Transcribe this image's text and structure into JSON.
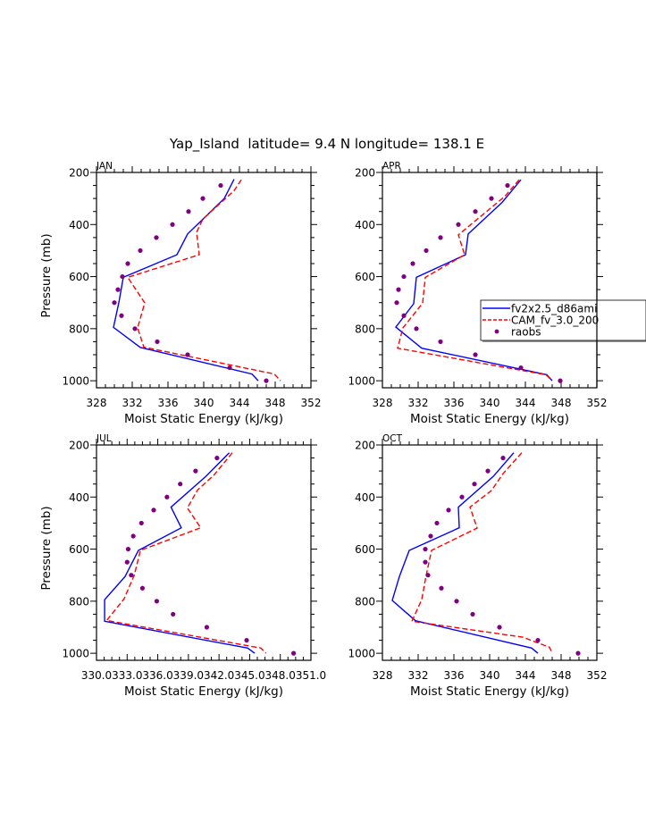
{
  "chart_data": {
    "type": "line",
    "title": "Yap_Island  latitude= 9.4 N longitude= 138.1 E",
    "legend": {
      "placement": "right-middle (inside APR panel, clipped)",
      "entries": [
        {
          "name": "fv2x2.5_d86ami",
          "style": "solid",
          "color": "#0000ff"
        },
        {
          "name": "CAM_fv_3.0_200",
          "style": "dashed",
          "color": "#ff0000"
        },
        {
          "name": "raobs",
          "style": "marker",
          "color": "#800080"
        }
      ]
    },
    "panels": [
      {
        "label": "JAN",
        "xlabel": "Moist Static Energy (kJ/kg)",
        "ylabel": "Pressure (mb)",
        "xlim": [
          328,
          352
        ],
        "ylim": [
          200,
          1027
        ],
        "y_inverted": true,
        "xticks": [
          "328",
          "332",
          "336",
          "340",
          "344",
          "348",
          "352"
        ],
        "xtick_values": [
          328,
          332,
          336,
          340,
          344,
          348,
          352
        ],
        "yticks": [
          200,
          400,
          600,
          800,
          1000
        ],
        "series": [
          {
            "name": "fv2x2.5_d86ami",
            "points": [
              [
                226,
                343.4
              ],
              [
                300,
                342.3
              ],
              [
                370,
                340.2
              ],
              [
                436,
                338.2
              ],
              [
                516,
                337.0
              ],
              [
                603,
                331.0
              ],
              [
                700,
                330.5
              ],
              [
                795,
                329.9
              ],
              [
                872,
                332.9
              ],
              [
                974,
                345.4
              ],
              [
                1000,
                346.1
              ]
            ]
          },
          {
            "name": "CAM_fv_3.0_200",
            "points": [
              [
                228,
                344.2
              ],
              [
                270,
                343.4
              ],
              [
                379,
                339.9
              ],
              [
                430,
                339.2
              ],
              [
                516,
                339.5
              ],
              [
                603,
                331.5
              ],
              [
                701,
                333.4
              ],
              [
                797,
                332.6
              ],
              [
                871,
                333.3
              ],
              [
                974,
                347.9
              ],
              [
                1000,
                348.6
              ]
            ]
          },
          {
            "name": "raobs",
            "points": [
              [
                250,
                341.9
              ],
              [
                300,
                339.9
              ],
              [
                350,
                338.3
              ],
              [
                400,
                336.5
              ],
              [
                450,
                334.7
              ],
              [
                500,
                332.9
              ],
              [
                550,
                331.5
              ],
              [
                600,
                330.9
              ],
              [
                650,
                330.4
              ],
              [
                700,
                330.0
              ],
              [
                750,
                330.8
              ],
              [
                800,
                332.3
              ],
              [
                850,
                334.8
              ],
              [
                900,
                338.2
              ],
              [
                950,
                342.9
              ],
              [
                1000,
                347.0
              ]
            ]
          }
        ],
        "show_legend": false
      },
      {
        "label": "APR",
        "xlabel": "Moist Static Energy (kJ/kg)",
        "ylabel": "",
        "xlim": [
          328,
          352
        ],
        "ylim": [
          200,
          1027
        ],
        "y_inverted": true,
        "xticks": [
          "328",
          "332",
          "336",
          "340",
          "344",
          "348",
          "352"
        ],
        "xtick_values": [
          328,
          332,
          336,
          340,
          344,
          348,
          352
        ],
        "yticks": [
          200,
          400,
          600,
          800,
          1000
        ],
        "series": [
          {
            "name": "fv2x2.5_d86ami",
            "points": [
              [
                228,
                343.5
              ],
              [
                315,
                341.4
              ],
              [
                436,
                337.6
              ],
              [
                516,
                337.3
              ],
              [
                603,
                331.8
              ],
              [
                704,
                331.5
              ],
              [
                794,
                329.5
              ],
              [
                875,
                332.4
              ],
              [
                977,
                346.4
              ],
              [
                1000,
                347.0
              ]
            ]
          },
          {
            "name": "CAM_fv_3.0_200",
            "points": [
              [
                228,
                343.3
              ],
              [
                292,
                341.7
              ],
              [
                440,
                336.5
              ],
              [
                516,
                337.2
              ],
              [
                603,
                332.8
              ],
              [
                702,
                332.5
              ],
              [
                797,
                330.3
              ],
              [
                875,
                329.7
              ],
              [
                977,
                346.3
              ],
              [
                1000,
                347.0
              ]
            ]
          },
          {
            "name": "raobs",
            "points": [
              [
                250,
                342.0
              ],
              [
                300,
                340.2
              ],
              [
                350,
                338.4
              ],
              [
                400,
                336.5
              ],
              [
                450,
                334.5
              ],
              [
                500,
                332.9
              ],
              [
                550,
                331.4
              ],
              [
                600,
                330.4
              ],
              [
                650,
                329.8
              ],
              [
                700,
                329.6
              ],
              [
                750,
                330.4
              ],
              [
                800,
                331.8
              ],
              [
                850,
                334.5
              ],
              [
                900,
                338.4
              ],
              [
                950,
                343.5
              ],
              [
                1000,
                347.9
              ]
            ]
          }
        ],
        "show_legend": true
      },
      {
        "label": "JUL",
        "xlabel": "Moist Static Energy (kJ/kg)",
        "ylabel": "Pressure (mb)",
        "xlim": [
          330,
          351
        ],
        "ylim": [
          200,
          1027
        ],
        "y_inverted": true,
        "xticks": [
          "330.0",
          "333.0",
          "336.0",
          "339.0",
          "342.0",
          "345.0",
          "348.0",
          "351.0"
        ],
        "xtick_values": [
          330,
          333,
          336,
          339,
          342,
          345,
          348,
          351
        ],
        "yticks": [
          200,
          400,
          600,
          800,
          1000
        ],
        "series": [
          {
            "name": "fv2x2.5_d86ami",
            "points": [
              [
                230,
                343.0
              ],
              [
                321,
                340.7
              ],
              [
                439,
                337.3
              ],
              [
                518,
                338.3
              ],
              [
                605,
                334.1
              ],
              [
                705,
                332.8
              ],
              [
                794,
                330.8
              ],
              [
                877,
                330.8
              ],
              [
                980,
                344.8
              ],
              [
                1000,
                345.5
              ]
            ]
          },
          {
            "name": "CAM_fv_3.0_200",
            "points": [
              [
                230,
                343.3
              ],
              [
                316,
                341.5
              ],
              [
                373,
                339.9
              ],
              [
                442,
                338.9
              ],
              [
                518,
                340.2
              ],
              [
                605,
                334.3
              ],
              [
                700,
                333.7
              ],
              [
                791,
                332.7
              ],
              [
                874,
                331.0
              ],
              [
                980,
                346.1
              ],
              [
                1000,
                346.6
              ]
            ]
          },
          {
            "name": "raobs",
            "points": [
              [
                250,
                341.8
              ],
              [
                300,
                339.7
              ],
              [
                350,
                338.2
              ],
              [
                400,
                336.9
              ],
              [
                450,
                335.6
              ],
              [
                500,
                334.4
              ],
              [
                550,
                333.6
              ],
              [
                600,
                333.1
              ],
              [
                650,
                333.0
              ],
              [
                700,
                333.4
              ],
              [
                750,
                334.5
              ],
              [
                800,
                335.9
              ],
              [
                850,
                337.5
              ],
              [
                900,
                340.8
              ],
              [
                950,
                344.7
              ],
              [
                1000,
                349.3
              ]
            ]
          }
        ],
        "show_legend": false
      },
      {
        "label": "OCT",
        "xlabel": "Moist Static Energy (kJ/kg)",
        "ylabel": "",
        "xlim": [
          328,
          352
        ],
        "ylim": [
          200,
          1027
        ],
        "y_inverted": true,
        "xticks": [
          "328",
          "332",
          "336",
          "340",
          "344",
          "348",
          "352"
        ],
        "xtick_values": [
          328,
          332,
          336,
          340,
          344,
          348,
          352
        ],
        "yticks": [
          200,
          400,
          600,
          800,
          1000
        ],
        "series": [
          {
            "name": "fv2x2.5_d86ami",
            "points": [
              [
                230,
                342.7
              ],
              [
                321,
                340.4
              ],
              [
                439,
                336.5
              ],
              [
                518,
                336.6
              ],
              [
                605,
                331.0
              ],
              [
                705,
                329.9
              ],
              [
                797,
                329.1
              ],
              [
                875,
                331.7
              ],
              [
                980,
                344.7
              ],
              [
                1000,
                345.4
              ]
            ]
          },
          {
            "name": "CAM_fv_3.0_200",
            "points": [
              [
                230,
                343.6
              ],
              [
                310,
                341.5
              ],
              [
                375,
                340.2
              ],
              [
                439,
                337.8
              ],
              [
                519,
                338.6
              ],
              [
                605,
                333.5
              ],
              [
                700,
                332.9
              ],
              [
                794,
                332.4
              ],
              [
                877,
                331.3
              ],
              [
                938,
                343.7
              ],
              [
                977,
                346.7
              ],
              [
                1000,
                347.0
              ]
            ]
          },
          {
            "name": "raobs",
            "points": [
              [
                250,
                341.5
              ],
              [
                300,
                339.8
              ],
              [
                350,
                338.3
              ],
              [
                400,
                336.9
              ],
              [
                450,
                335.4
              ],
              [
                500,
                334.1
              ],
              [
                550,
                333.4
              ],
              [
                600,
                332.8
              ],
              [
                650,
                332.8
              ],
              [
                700,
                333.1
              ],
              [
                750,
                334.6
              ],
              [
                800,
                336.3
              ],
              [
                850,
                338.1
              ],
              [
                900,
                341.1
              ],
              [
                950,
                345.4
              ],
              [
                1000,
                349.9
              ]
            ]
          }
        ],
        "show_legend": false
      }
    ]
  }
}
